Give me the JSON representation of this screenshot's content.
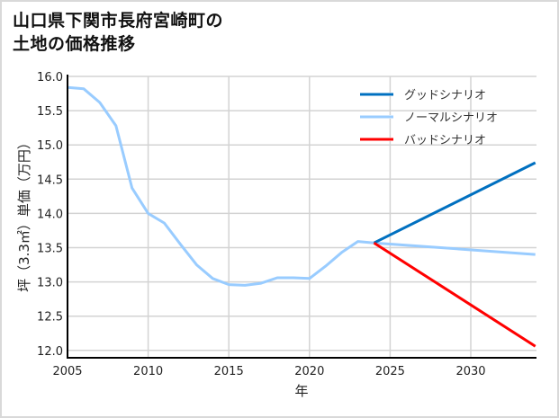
{
  "title": "山口県下関市長府宮崎町の\n土地の価格推移",
  "chart_data": {
    "type": "line",
    "title": "山口県下関市長府宮崎町の土地の価格推移",
    "xlabel": "年",
    "ylabel": "坪（3.3㎡）単価（万円）",
    "xlim": [
      2005,
      2034
    ],
    "ylim": [
      11.87,
      16.0
    ],
    "xticks": [
      2005,
      2010,
      2015,
      2020,
      2025,
      2030
    ],
    "xtick_labels": [
      "2005",
      "2010",
      "2015",
      "2020",
      "2025",
      "2030"
    ],
    "yticks": [
      12.0,
      12.5,
      13.0,
      13.5,
      14.0,
      14.5,
      15.0,
      15.5,
      16.0
    ],
    "ytick_labels": [
      "12.0",
      "12.5",
      "13.0",
      "13.5",
      "14.0",
      "14.5",
      "15.0",
      "15.5",
      "16.0"
    ],
    "grid": true,
    "legend_position": "upper right",
    "series": [
      {
        "name": "グッドシナリオ",
        "color": "#0070c0",
        "x": [
          2024,
          2034
        ],
        "values": [
          13.57,
          14.74
        ]
      },
      {
        "name": "ノーマルシナリオ",
        "color": "#99ccff",
        "x": [
          2005,
          2006,
          2007,
          2008,
          2009,
          2010,
          2011,
          2012,
          2013,
          2014,
          2015,
          2016,
          2017,
          2018,
          2019,
          2020,
          2021,
          2022,
          2023,
          2024,
          2034
        ],
        "values": [
          15.84,
          15.82,
          15.62,
          15.28,
          14.37,
          14.0,
          13.86,
          13.55,
          13.25,
          13.05,
          12.96,
          12.95,
          12.98,
          13.06,
          13.06,
          13.05,
          13.23,
          13.43,
          13.59,
          13.57,
          13.4
        ]
      },
      {
        "name": "バッドシナリオ",
        "color": "#ff0000",
        "x": [
          2024,
          2034
        ],
        "values": [
          13.57,
          12.06
        ]
      }
    ]
  }
}
